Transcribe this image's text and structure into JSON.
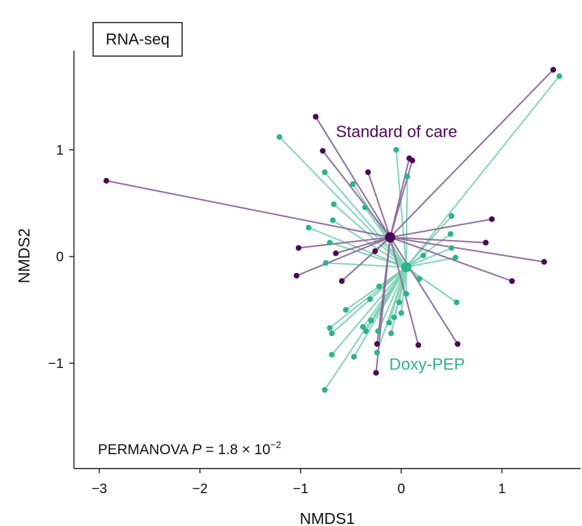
{
  "panel_label": "RNA-seq",
  "stat": {
    "prefix": "PERMANOVA ",
    "italic": "P",
    "equals": " = 1.8 × 10",
    "exponent": "−2"
  },
  "colors": {
    "soc": "#4b0a57",
    "doxy": "#2fb38a",
    "soc_line": "#8d6a9b",
    "doxy_line": "#7fd4b5",
    "axis": "#111111"
  },
  "chart_data": {
    "type": "scatter",
    "xlabel": "NMDS1",
    "ylabel": "NMDS2",
    "xlim": [
      -3.25,
      1.8
    ],
    "ylim": [
      -2.0,
      1.95
    ],
    "xticks": [
      -3,
      -2,
      -1,
      0,
      1
    ],
    "xtick_labels": [
      "−3",
      "−2",
      "−1",
      "0",
      "1"
    ],
    "yticks": [
      -1,
      0,
      1
    ],
    "ytick_labels": [
      "−1",
      "0",
      "1"
    ],
    "grid": false,
    "series": [
      {
        "name": "Standard of care",
        "color_key": "soc",
        "line_key": "soc_line",
        "centroid": [
          -0.11,
          0.18
        ],
        "label_anchor": [
          -0.65,
          1.12
        ],
        "points": [
          [
            -2.93,
            0.71
          ],
          [
            1.51,
            1.75
          ],
          [
            -0.85,
            1.31
          ],
          [
            -0.78,
            0.99
          ],
          [
            -0.33,
            0.79
          ],
          [
            0.08,
            0.92
          ],
          [
            0.11,
            0.9
          ],
          [
            0.9,
            0.35
          ],
          [
            0.84,
            0.13
          ],
          [
            1.42,
            -0.05
          ],
          [
            1.1,
            -0.23
          ],
          [
            0.56,
            -0.82
          ],
          [
            0.17,
            -0.83
          ],
          [
            -0.24,
            -0.82
          ],
          [
            -0.25,
            -1.09
          ],
          [
            -1.02,
            0.08
          ],
          [
            -1.04,
            -0.18
          ],
          [
            -0.65,
            0.03
          ],
          [
            -0.59,
            -0.23
          ],
          [
            -0.26,
            0.05
          ]
        ]
      },
      {
        "name": "Doxy-PEP",
        "color_key": "doxy",
        "line_key": "doxy_line",
        "centroid": [
          0.05,
          -0.1
        ],
        "label_anchor": [
          -0.12,
          -1.06
        ],
        "points": [
          [
            -1.21,
            1.12
          ],
          [
            1.57,
            1.69
          ],
          [
            -0.05,
            1.0
          ],
          [
            0.06,
            0.75
          ],
          [
            -0.76,
            0.79
          ],
          [
            -0.48,
            0.68
          ],
          [
            -0.67,
            0.49
          ],
          [
            -0.36,
            0.46
          ],
          [
            -0.68,
            0.34
          ],
          [
            -0.92,
            0.27
          ],
          [
            -0.71,
            0.13
          ],
          [
            -0.75,
            -0.06
          ],
          [
            0.5,
            0.38
          ],
          [
            0.49,
            0.21
          ],
          [
            0.5,
            0.08
          ],
          [
            0.54,
            -0.01
          ],
          [
            0.22,
            0.01
          ],
          [
            0.18,
            -0.21
          ],
          [
            0.55,
            -0.43
          ],
          [
            0.05,
            -0.35
          ],
          [
            -0.22,
            -0.28
          ],
          [
            -0.02,
            -0.43
          ],
          [
            -0.07,
            -0.57
          ],
          [
            -0.31,
            -0.4
          ],
          [
            -0.55,
            -0.5
          ],
          [
            -0.71,
            -0.67
          ],
          [
            -0.69,
            -0.72
          ],
          [
            -0.12,
            -0.62
          ],
          [
            -0.38,
            -0.66
          ],
          [
            -0.35,
            -0.7
          ],
          [
            -0.23,
            -0.7
          ],
          [
            -0.1,
            -0.72
          ],
          [
            -0.69,
            -0.92
          ],
          [
            -0.47,
            -0.94
          ],
          [
            -0.24,
            -0.9
          ],
          [
            -0.76,
            -1.25
          ],
          [
            0.0,
            -0.53
          ],
          [
            -0.3,
            -0.6
          ]
        ]
      }
    ]
  }
}
